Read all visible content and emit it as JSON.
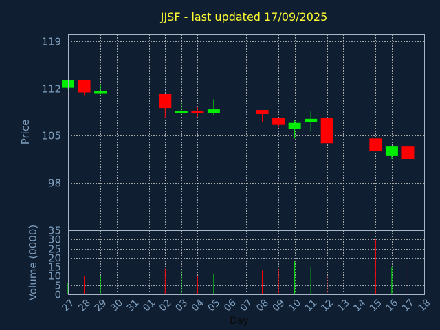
{
  "chart_data": {
    "type": "candlestick",
    "title": "JJSF - last updated 17/09/2025",
    "ylabel": "Price",
    "volume_ylabel": "Volume (0000)",
    "xlabel": "Day",
    "ylim": [
      91,
      120
    ],
    "volume_ylim": [
      0,
      35
    ],
    "y_ticks": [
      98,
      105,
      112,
      119
    ],
    "volume_ticks": [
      0,
      5,
      10,
      15,
      20,
      25,
      30,
      35
    ],
    "x_ticks": [
      "27",
      "28",
      "29",
      "30",
      "31",
      "01",
      "02",
      "03",
      "04",
      "05",
      "06",
      "07",
      "08",
      "09",
      "10",
      "11",
      "12",
      "13",
      "14",
      "15",
      "16",
      "17",
      "18"
    ],
    "up_color": "#00ee00",
    "down_color": "#ff0000",
    "candles": [
      {
        "x": 0,
        "open": 112.1,
        "close": 113.2,
        "high": 113.3,
        "low": 112.0,
        "volume": 6
      },
      {
        "x": 1,
        "open": 113.2,
        "close": 111.4,
        "high": 113.3,
        "low": 111.0,
        "volume": 10
      },
      {
        "x": 2,
        "open": 111.3,
        "close": 111.6,
        "high": 112.6,
        "low": 111.1,
        "volume": 10
      },
      {
        "x": 6,
        "open": 111.2,
        "close": 109.1,
        "high": 111.2,
        "low": 107.6,
        "volume": 14
      },
      {
        "x": 7,
        "open": 108.3,
        "close": 108.6,
        "high": 109.9,
        "low": 108.1,
        "volume": 13
      },
      {
        "x": 8,
        "open": 108.7,
        "close": 108.3,
        "high": 109.2,
        "low": 107.8,
        "volume": 10
      },
      {
        "x": 9,
        "open": 108.3,
        "close": 108.9,
        "high": 110.4,
        "low": 108.1,
        "volume": 11
      },
      {
        "x": 12,
        "open": 108.8,
        "close": 108.2,
        "high": 108.8,
        "low": 107.0,
        "volume": 13
      },
      {
        "x": 13,
        "open": 107.6,
        "close": 106.6,
        "high": 107.6,
        "low": 106.2,
        "volume": 14
      },
      {
        "x": 14,
        "open": 106.0,
        "close": 106.9,
        "high": 107.3,
        "low": 104.6,
        "volume": 18
      },
      {
        "x": 15,
        "open": 107.0,
        "close": 107.5,
        "high": 108.7,
        "low": 105.6,
        "volume": 15
      },
      {
        "x": 16,
        "open": 107.6,
        "close": 103.9,
        "high": 107.6,
        "low": 103.9,
        "volume": 10
      },
      {
        "x": 19,
        "open": 104.6,
        "close": 102.7,
        "high": 104.6,
        "low": 102.7,
        "volume": 30
      },
      {
        "x": 20,
        "open": 102.0,
        "close": 103.4,
        "high": 103.4,
        "low": 101.5,
        "volume": 15
      },
      {
        "x": 21,
        "open": 103.4,
        "close": 101.5,
        "high": 103.6,
        "low": 101.5,
        "volume": 16
      }
    ]
  }
}
